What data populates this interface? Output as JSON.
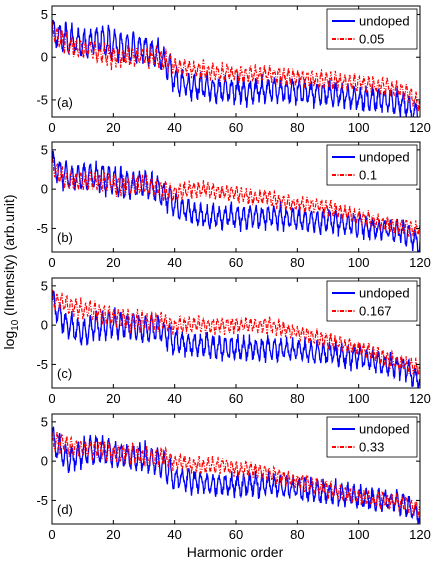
{
  "figure": {
    "xlabel": "Harmonic order",
    "ylabel_main": "log",
    "ylabel_sub": "10",
    "ylabel_rest": " (Intensity) (arb.unit)"
  },
  "chart_data": [
    {
      "type": "line",
      "panel_label": "(a)",
      "xlim": [
        0,
        120
      ],
      "ylim": [
        -7,
        6
      ],
      "xticks": [
        0,
        20,
        40,
        60,
        80,
        100,
        120
      ],
      "yticks": [
        -5,
        0,
        5
      ],
      "legend_position": "top-right",
      "series": [
        {
          "name": "undoped",
          "color": "#0000ff",
          "style": "solid",
          "x": [
            0,
            5,
            10,
            15,
            20,
            25,
            30,
            35,
            40,
            45,
            50,
            55,
            60,
            65,
            70,
            75,
            80,
            85,
            90,
            95,
            100,
            105,
            110,
            115,
            120
          ],
          "y": [
            3,
            2,
            1.5,
            2,
            1.5,
            1,
            1,
            0.5,
            -2.5,
            -3.5,
            -3.5,
            -3.8,
            -3.8,
            -4,
            -3.8,
            -4,
            -4,
            -4.3,
            -4.3,
            -4.5,
            -4.8,
            -5,
            -5,
            -5.5,
            -7
          ]
        },
        {
          "name": "0.05",
          "color": "#ff0000",
          "style": "dashdot",
          "x": [
            0,
            5,
            10,
            15,
            20,
            25,
            30,
            35,
            40,
            45,
            50,
            55,
            60,
            65,
            70,
            75,
            80,
            85,
            90,
            95,
            100,
            105,
            110,
            115,
            120
          ],
          "y": [
            3,
            1.5,
            1,
            0.5,
            0,
            0,
            0,
            0,
            -1,
            -1.5,
            -1.5,
            -1.8,
            -2,
            -2,
            -2,
            -2.2,
            -2.3,
            -2.5,
            -2.7,
            -2.8,
            -3,
            -3.2,
            -3.5,
            -4,
            -5.5
          ]
        }
      ]
    },
    {
      "type": "line",
      "panel_label": "(b)",
      "xlim": [
        0,
        120
      ],
      "ylim": [
        -8,
        6
      ],
      "xticks": [
        0,
        20,
        40,
        60,
        80,
        100,
        120
      ],
      "yticks": [
        -5,
        0,
        5
      ],
      "legend_position": "top-right",
      "series": [
        {
          "name": "undoped",
          "color": "#0000ff",
          "style": "solid",
          "x": [
            0,
            5,
            10,
            15,
            20,
            25,
            30,
            35,
            40,
            45,
            50,
            55,
            60,
            65,
            70,
            75,
            80,
            85,
            90,
            95,
            100,
            105,
            110,
            115,
            120
          ],
          "y": [
            3,
            1.5,
            1.5,
            1.5,
            1,
            0.5,
            0.5,
            0,
            -2,
            -3,
            -3.5,
            -3.5,
            -3.5,
            -3.5,
            -3.5,
            -3.5,
            -3.7,
            -4,
            -4,
            -4.3,
            -4.5,
            -5,
            -5.2,
            -5.5,
            -7
          ]
        },
        {
          "name": "0.1",
          "color": "#ff0000",
          "style": "dashdot",
          "x": [
            0,
            5,
            10,
            15,
            20,
            25,
            30,
            35,
            40,
            45,
            50,
            55,
            60,
            65,
            70,
            75,
            80,
            85,
            90,
            95,
            100,
            105,
            110,
            115,
            120
          ],
          "y": [
            3,
            1,
            1,
            1,
            0.5,
            0.5,
            0.5,
            0,
            -0.5,
            0,
            0,
            -0.5,
            -0.5,
            -1,
            -1,
            -1.5,
            -2,
            -2,
            -2.5,
            -3,
            -3.5,
            -4,
            -4.5,
            -5,
            -5
          ]
        }
      ]
    },
    {
      "type": "line",
      "panel_label": "(c)",
      "xlim": [
        0,
        120
      ],
      "ylim": [
        -8,
        6
      ],
      "xticks": [
        0,
        20,
        40,
        60,
        80,
        100,
        120
      ],
      "yticks": [
        -5,
        0,
        5
      ],
      "legend_position": "top-right",
      "series": [
        {
          "name": "undoped",
          "color": "#0000ff",
          "style": "solid",
          "x": [
            0,
            5,
            10,
            15,
            20,
            25,
            30,
            35,
            40,
            45,
            50,
            55,
            60,
            65,
            70,
            75,
            80,
            85,
            90,
            95,
            100,
            105,
            110,
            115,
            120
          ],
          "y": [
            3,
            0,
            -1,
            0,
            0,
            0,
            -0.5,
            -0.5,
            -2,
            -2.5,
            -2.5,
            -3,
            -3,
            -3,
            -3,
            -3,
            -3.2,
            -3.5,
            -3.5,
            -4,
            -4,
            -4.5,
            -5,
            -5.5,
            -7
          ]
        },
        {
          "name": "0.167",
          "color": "#ff0000",
          "style": "dashdot",
          "x": [
            0,
            5,
            10,
            15,
            20,
            25,
            30,
            35,
            40,
            45,
            50,
            55,
            60,
            65,
            70,
            75,
            80,
            85,
            90,
            95,
            100,
            105,
            110,
            115,
            120
          ],
          "y": [
            3.5,
            2.5,
            2,
            1.5,
            1,
            0.5,
            0.5,
            0.5,
            0,
            0,
            0,
            0,
            0,
            0,
            0,
            -0.5,
            -1,
            -1.5,
            -2,
            -2.5,
            -3,
            -3.5,
            -4.5,
            -5,
            -5.5
          ]
        }
      ]
    },
    {
      "type": "line",
      "panel_label": "(d)",
      "xlim": [
        0,
        120
      ],
      "ylim": [
        -8,
        6
      ],
      "xticks": [
        0,
        20,
        40,
        60,
        80,
        100,
        120
      ],
      "yticks": [
        -5,
        0,
        5
      ],
      "legend_position": "top-right",
      "series": [
        {
          "name": "undoped",
          "color": "#0000ff",
          "style": "solid",
          "x": [
            0,
            5,
            10,
            15,
            20,
            25,
            30,
            35,
            40,
            45,
            50,
            55,
            60,
            65,
            70,
            75,
            80,
            85,
            90,
            95,
            100,
            105,
            110,
            115,
            120
          ],
          "y": [
            3,
            0,
            1,
            1.5,
            1,
            0.5,
            0.5,
            0,
            -2,
            -2.5,
            -2.8,
            -3,
            -3,
            -3,
            -3,
            -3.3,
            -3.5,
            -3.8,
            -4,
            -4.2,
            -4.5,
            -5,
            -5,
            -5.5,
            -7
          ]
        },
        {
          "name": "0.33",
          "color": "#ff0000",
          "style": "dashdot",
          "x": [
            0,
            5,
            10,
            15,
            20,
            25,
            30,
            35,
            40,
            45,
            50,
            55,
            60,
            65,
            70,
            75,
            80,
            85,
            90,
            95,
            100,
            105,
            110,
            115,
            120
          ],
          "y": [
            2.5,
            2,
            1.5,
            1.5,
            1,
            1,
            0.5,
            0.5,
            0,
            -0.5,
            -0.5,
            -0.5,
            -1,
            -1,
            -1.5,
            -2,
            -2.5,
            -3,
            -3.5,
            -4,
            -4.5,
            -5,
            -5,
            -5.5,
            -6
          ]
        }
      ]
    }
  ]
}
